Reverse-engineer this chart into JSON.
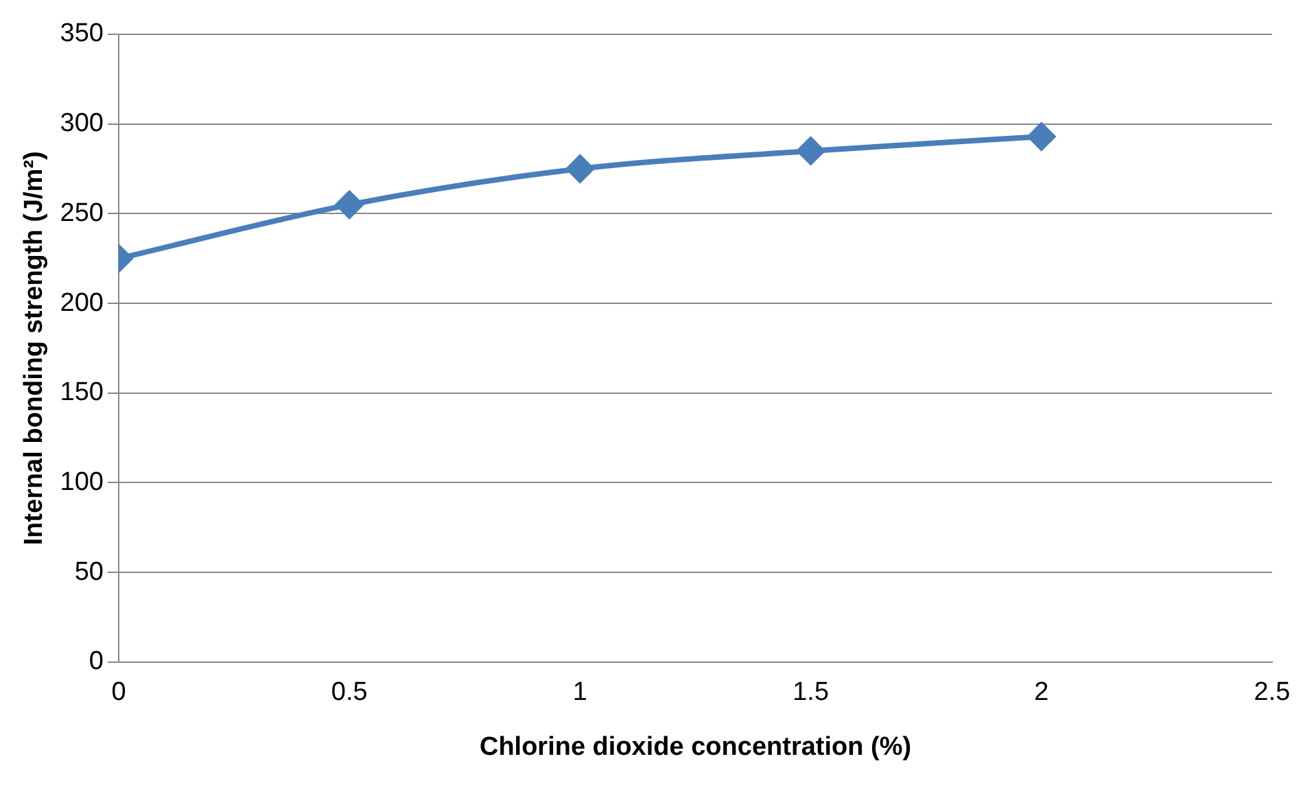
{
  "chart_data": {
    "type": "line",
    "xlabel": "Chlorine dioxide concentration (%)",
    "ylabel": "Internal bonding strength (J/m²)",
    "x": [
      0,
      0.5,
      1,
      1.5,
      2
    ],
    "series": [
      {
        "color": "#4a7ebb",
        "values": [
          225,
          255,
          275,
          285,
          293
        ]
      }
    ],
    "xlim": [
      0,
      2.5
    ],
    "xticks": [
      0,
      0.5,
      1,
      1.5,
      2,
      2.5
    ],
    "ylim": [
      0,
      350
    ],
    "yticks": [
      0,
      50,
      100,
      150,
      200,
      250,
      300,
      350
    ],
    "grid": "y",
    "legend": false,
    "marker": "diamond",
    "line_style": "solid"
  }
}
